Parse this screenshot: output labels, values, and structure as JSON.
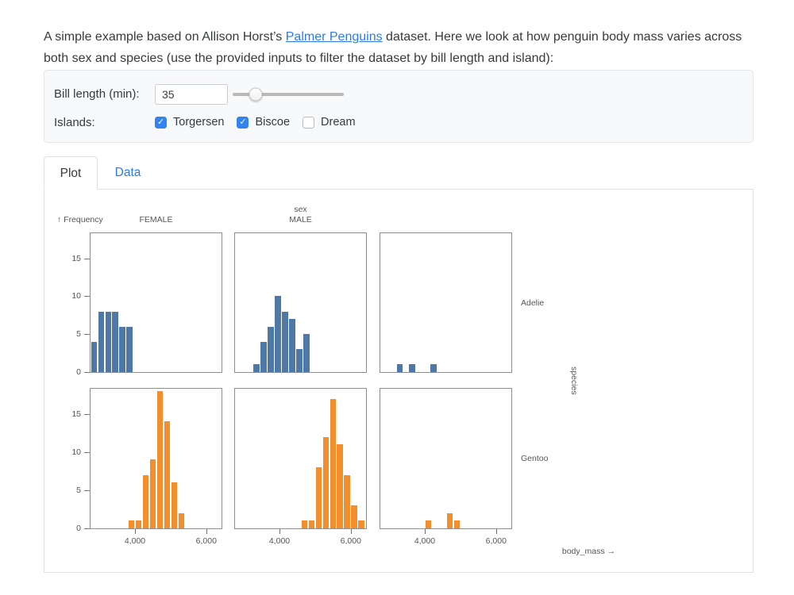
{
  "theme": {
    "link_color": "#2b7ce9",
    "checkbox_color": "#3282ef",
    "adelie_color": "#4e79a7",
    "gentoo_color": "#f28e2c"
  },
  "intro": {
    "before": "A simple example based on Allison Horst’s ",
    "link_text": "Palmer Penguins",
    "after": " dataset. Here we look at how penguin body mass varies across both sex and species (use the provided inputs to filter the dataset by bill length and island):"
  },
  "form": {
    "bill_length_label": "Bill length (min):",
    "bill_length_value": "35",
    "slider_percent": 21,
    "islands_label": "Islands:",
    "islands": [
      {
        "label": "Torgersen",
        "checked": true
      },
      {
        "label": "Biscoe",
        "checked": true
      },
      {
        "label": "Dream",
        "checked": false
      }
    ]
  },
  "tabs": {
    "plot_label": "Plot",
    "data_label": "Data",
    "active": "Plot"
  },
  "chart_data": {
    "type": "bar",
    "subtype": "faceted-histogram",
    "x_field": "body_mass",
    "x_axis_label": "body_mass →",
    "y_axis_label": "↑ Frequency",
    "fx_label": "sex",
    "fy_label": "species",
    "x_domain": [
      2730,
      6450
    ],
    "y_domain": [
      0,
      18.3
    ],
    "x_ticks": [
      4000,
      6000
    ],
    "x_tick_labels": [
      "4,000",
      "6,000"
    ],
    "y_ticks": [
      0,
      5,
      10,
      15
    ],
    "bin_width": 200,
    "col_labels": [
      "FEMALE",
      "MALE",
      ""
    ],
    "row_labels": [
      "Adelie",
      "Gentoo"
    ],
    "row_colors": [
      "#4e79a7",
      "#f28e2c"
    ],
    "grid": false,
    "legend": "none",
    "facets": [
      {
        "species": "Adelie",
        "sex": "FEMALE",
        "row": 0,
        "col": 0,
        "bins": [
          [
            2750,
            4
          ],
          [
            2950,
            8
          ],
          [
            3150,
            8
          ],
          [
            3350,
            8
          ],
          [
            3550,
            6
          ],
          [
            3750,
            6
          ]
        ]
      },
      {
        "species": "Adelie",
        "sex": "MALE",
        "row": 0,
        "col": 1,
        "bins": [
          [
            3250,
            1
          ],
          [
            3450,
            4
          ],
          [
            3650,
            6
          ],
          [
            3850,
            10
          ],
          [
            4050,
            8
          ],
          [
            4250,
            7
          ],
          [
            4450,
            3
          ],
          [
            4650,
            5
          ]
        ]
      },
      {
        "species": "Adelie",
        "sex": "NA",
        "row": 0,
        "col": 2,
        "bins": [
          [
            3200,
            1
          ],
          [
            3550,
            1
          ],
          [
            4150,
            1
          ]
        ]
      },
      {
        "species": "Gentoo",
        "sex": "FEMALE",
        "row": 1,
        "col": 0,
        "bins": [
          [
            3800,
            1
          ],
          [
            4000,
            1
          ],
          [
            4200,
            7
          ],
          [
            4400,
            9
          ],
          [
            4600,
            18
          ],
          [
            4800,
            14
          ],
          [
            5000,
            6
          ],
          [
            5200,
            2
          ]
        ]
      },
      {
        "species": "Gentoo",
        "sex": "MALE",
        "row": 1,
        "col": 1,
        "bins": [
          [
            4600,
            1
          ],
          [
            4800,
            1
          ],
          [
            5000,
            8
          ],
          [
            5200,
            12
          ],
          [
            5400,
            17
          ],
          [
            5600,
            11
          ],
          [
            5800,
            7
          ],
          [
            6000,
            3
          ],
          [
            6200,
            1
          ]
        ]
      },
      {
        "species": "Gentoo",
        "sex": "NA",
        "row": 1,
        "col": 2,
        "bins": [
          [
            4000,
            1
          ],
          [
            4600,
            2
          ],
          [
            4800,
            1
          ]
        ]
      }
    ]
  }
}
